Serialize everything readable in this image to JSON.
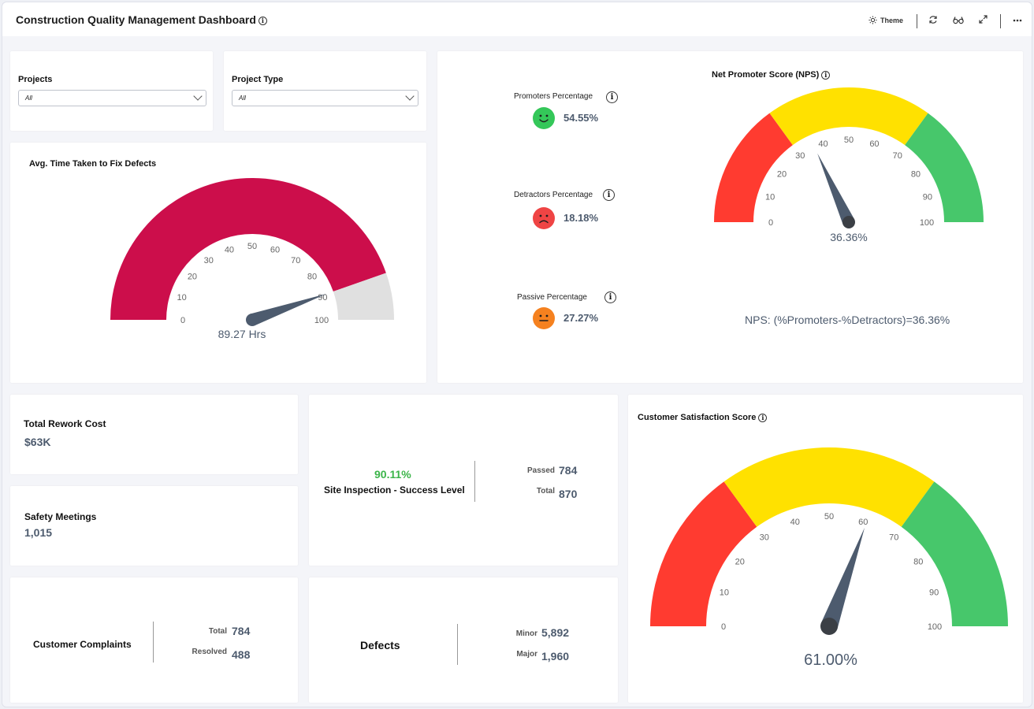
{
  "app": {
    "title": "Construction Quality Management Dashboard"
  },
  "toolbar": {
    "theme_label": "Theme",
    "icons": [
      "sun-icon",
      "refresh-icon",
      "glasses-icon",
      "expand-icon",
      "more-icon"
    ]
  },
  "filters": {
    "projects": {
      "label": "Projects",
      "value": "All"
    },
    "project_type": {
      "label": "Project Type",
      "value": "All"
    }
  },
  "avg_time": {
    "title": "Avg. Time Taken to Fix Defects",
    "value": 89.27,
    "value_label": "89.27 Hrs",
    "min": 0,
    "max": 100,
    "ticks": [
      "0",
      "10",
      "20",
      "30",
      "40",
      "50",
      "60",
      "70",
      "80",
      "90",
      "100"
    ],
    "fill_color": "#cc0e4b",
    "track_color": "#e0e0e0"
  },
  "nps_panel": {
    "promoters": {
      "label": "Promoters Percentage",
      "value": "54.55%",
      "color": "#34c759"
    },
    "detractors": {
      "label": "Detractors Percentage",
      "value": "18.18%",
      "color": "#ef4444"
    },
    "passive": {
      "label": "Passive Percentage",
      "value": "27.27%",
      "color": "#f5811f"
    },
    "gauge": {
      "title": "Net Promoter Score (NPS)",
      "value": 36.36,
      "value_label": "36.36%",
      "ticks": [
        "0",
        "10",
        "20",
        "30",
        "40",
        "50",
        "60",
        "70",
        "80",
        "90",
        "100"
      ],
      "bands": [
        {
          "from": 0,
          "to": 30,
          "color": "#ff3b30"
        },
        {
          "from": 30,
          "to": 70,
          "color": "#ffe100"
        },
        {
          "from": 70,
          "to": 100,
          "color": "#47c76b"
        }
      ]
    },
    "formula": "NPS: (%Promoters-%Detractors)=36.36%"
  },
  "rework": {
    "label": "Total Rework Cost",
    "value": "$63K"
  },
  "safety": {
    "label": "Safety Meetings",
    "value": "1,015"
  },
  "site_inspection": {
    "percent": "90.11%",
    "label": "Site Inspection - Success Level",
    "passed_label": "Passed",
    "passed_value": "784",
    "total_label": "Total",
    "total_value": "870",
    "percent_color": "#3cb54a"
  },
  "complaints": {
    "label": "Customer Complaints",
    "total_label": "Total",
    "total_value": "784",
    "resolved_label": "Resolved",
    "resolved_value": "488"
  },
  "defects": {
    "label": "Defects",
    "minor_label": "Minor",
    "minor_value": "5,892",
    "major_label": "Major",
    "major_value": "1,960"
  },
  "csat": {
    "title": "Customer Satisfaction Score",
    "value": 61.0,
    "value_label": "61.00%",
    "ticks": [
      "0",
      "10",
      "20",
      "30",
      "40",
      "50",
      "60",
      "70",
      "80",
      "90",
      "100"
    ],
    "bands": [
      {
        "from": 0,
        "to": 30,
        "color": "#ff3b30"
      },
      {
        "from": 30,
        "to": 70,
        "color": "#ffe100"
      },
      {
        "from": 70,
        "to": 100,
        "color": "#47c76b"
      }
    ]
  }
}
